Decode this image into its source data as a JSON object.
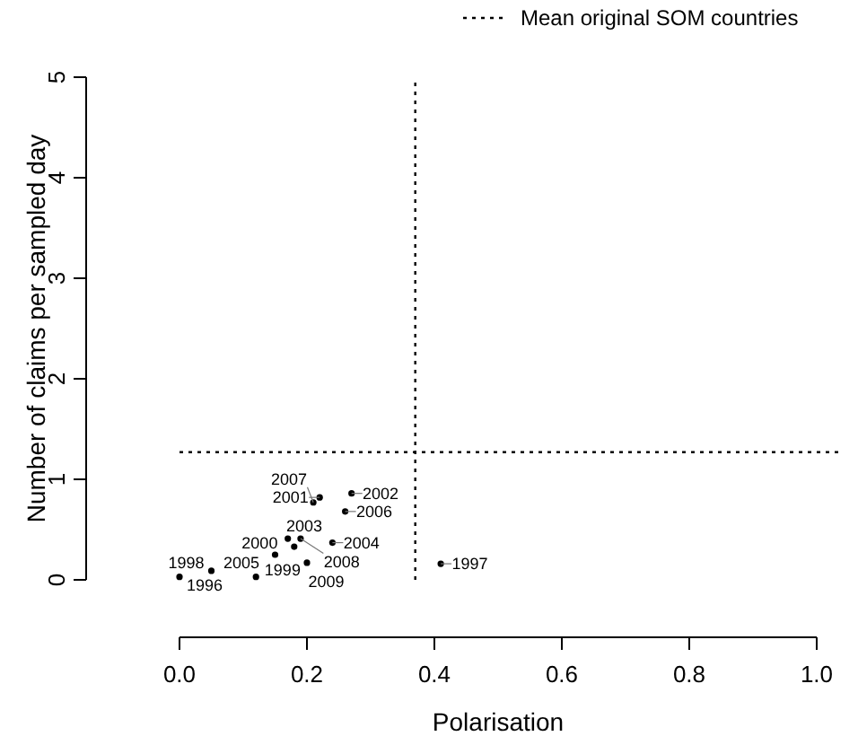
{
  "chart_data": {
    "type": "scatter",
    "xlabel": "Polarisation",
    "ylabel": "Number of claims per sampled day",
    "xlim": [
      0,
      1
    ],
    "ylim": [
      0,
      5
    ],
    "xticks": [
      {
        "value": 0,
        "label": "0.0"
      },
      {
        "value": 0.2,
        "label": "0.2"
      },
      {
        "value": 0.4,
        "label": "0.4"
      },
      {
        "value": 0.6,
        "label": "0.6"
      },
      {
        "value": 0.8,
        "label": "0.8"
      },
      {
        "value": 1,
        "label": "1.0"
      }
    ],
    "yticks": [
      0,
      1,
      2,
      3,
      4,
      5
    ],
    "grid": false,
    "marker": "circle",
    "legend": "top right",
    "series": [
      {
        "color": "#000000",
        "x": [
          0.0,
          0.41,
          0.05,
          0.15,
          0.17,
          0.22,
          0.27,
          0.18,
          0.24,
          0.12,
          0.26,
          0.21,
          0.19,
          0.2
        ],
        "values": [
          0.03,
          0.16,
          0.09,
          0.25,
          0.41,
          0.82,
          0.86,
          0.33,
          0.37,
          0.03,
          0.68,
          0.77,
          0.41,
          0.17
        ]
      }
    ],
    "annotations": [
      {
        "text": "1996",
        "x": 0.0,
        "y": 0.03
      },
      {
        "text": "1997",
        "x": 0.41,
        "y": 0.16
      },
      {
        "text": "1998",
        "x": 0.05,
        "y": 0.09
      },
      {
        "text": "1999",
        "x": 0.15,
        "y": 0.25
      },
      {
        "text": "2000",
        "x": 0.17,
        "y": 0.41
      },
      {
        "text": "2001",
        "x": 0.22,
        "y": 0.82
      },
      {
        "text": "2002",
        "x": 0.27,
        "y": 0.86
      },
      {
        "text": "2003",
        "x": 0.18,
        "y": 0.33
      },
      {
        "text": "2004",
        "x": 0.24,
        "y": 0.37
      },
      {
        "text": "2005",
        "x": 0.12,
        "y": 0.03
      },
      {
        "text": "2006",
        "x": 0.26,
        "y": 0.68
      },
      {
        "text": "2007",
        "x": 0.21,
        "y": 0.77
      },
      {
        "text": "2008",
        "x": 0.19,
        "y": 0.41
      },
      {
        "text": "2009",
        "x": 0.2,
        "y": 0.17
      }
    ],
    "ref_lines": [
      {
        "axis": "x",
        "value": 0.37,
        "label": null,
        "line_style": "dotted",
        "color": "#000000"
      },
      {
        "axis": "y",
        "value": 1.27,
        "label": "Mean original SOM countries",
        "line_style": "dotted",
        "color": "#000000"
      }
    ]
  }
}
